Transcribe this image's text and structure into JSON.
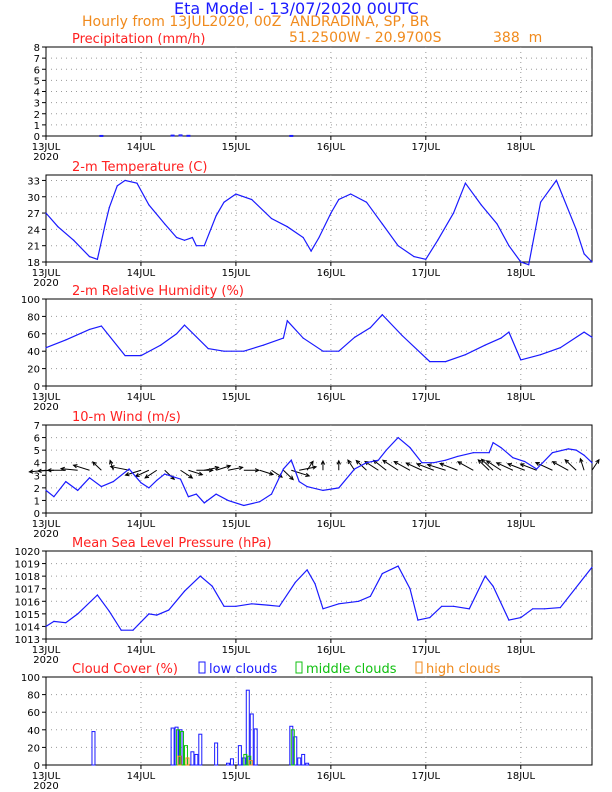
{
  "header": {
    "title": "Eta Model - 13/07/2020 00UTC",
    "subtitle": "Hourly from 13JUL2020, 00Z  ANDRADINA, SP, BR",
    "coords": "51.2500W - 20.9700S",
    "elevation": "388  m"
  },
  "colors": {
    "title": "#1a1aff",
    "subtitle": "#f08a1c",
    "panel_title": "#ff2020",
    "line": "#1a1aff",
    "wind_arrows": "#000000",
    "low_clouds": "#1a1aff",
    "middle_clouds": "#10c010",
    "high_clouds": "#f08a1c"
  },
  "time_axis": {
    "hours": 138,
    "tick_labels": [
      "13JUL",
      "14JUL",
      "15JUL",
      "16JUL",
      "17JUL",
      "18JUL"
    ],
    "year_label": "2020"
  },
  "chart_data": [
    {
      "type": "bar",
      "title": "Precipitation (mm/h)",
      "ylim": [
        0,
        8
      ],
      "yticks": [
        "0",
        "1",
        "2",
        "3",
        "4",
        "5",
        "6",
        "7",
        "8"
      ],
      "x_hours": [
        14,
        32,
        34,
        36,
        62
      ],
      "values": [
        0.05,
        0.08,
        0.1,
        0.06,
        0.05
      ]
    },
    {
      "type": "line",
      "title": "2-m Temperature (C)",
      "ylim": [
        18,
        34
      ],
      "yticks": [
        "18",
        "21",
        "24",
        "27",
        "30",
        "33"
      ],
      "x_hours": [
        0,
        3,
        7,
        11,
        13,
        15,
        16,
        18,
        20,
        23,
        26,
        30,
        33,
        35,
        37,
        38,
        40,
        43,
        45,
        48,
        52,
        57,
        61,
        65,
        67,
        69,
        72,
        74,
        77,
        81,
        85,
        89,
        93,
        96,
        99,
        103,
        106,
        110,
        114,
        117,
        120,
        122,
        125,
        129,
        134,
        136,
        138
      ],
      "values": [
        27,
        24.5,
        22,
        19,
        18.5,
        25,
        28,
        32,
        33,
        32.5,
        28.5,
        25,
        22.5,
        22,
        22.5,
        21,
        21,
        26.5,
        29,
        30.5,
        29.5,
        26,
        24.5,
        22.5,
        20,
        22.5,
        27,
        29.5,
        30.5,
        29,
        25,
        21,
        19,
        18.5,
        22,
        27,
        32.5,
        28.5,
        25,
        21,
        18,
        17.5,
        29,
        33,
        24,
        19.5,
        18
      ]
    },
    {
      "type": "line",
      "title": "2-m Relative Humidity (%)",
      "ylim": [
        0,
        100
      ],
      "yticks": [
        "0",
        "20",
        "40",
        "60",
        "80",
        "100"
      ],
      "x_hours": [
        0,
        5,
        11,
        14,
        20,
        24,
        29,
        33,
        35,
        41,
        45,
        50,
        55,
        60,
        61,
        65,
        70,
        74,
        78,
        82,
        85,
        90,
        97,
        101,
        106,
        111,
        115,
        117,
        120,
        125,
        130,
        136,
        138
      ],
      "values": [
        44,
        53,
        65,
        69,
        35,
        35,
        47,
        60,
        70,
        43,
        40,
        40,
        47,
        55,
        75,
        55,
        40,
        40,
        56,
        67,
        82,
        58,
        28,
        28,
        36,
        47,
        55,
        62,
        30,
        36,
        44,
        62,
        56
      ]
    },
    {
      "type": "line",
      "title": "10-m Wind (m/s)",
      "ylim": [
        0,
        7
      ],
      "yticks": [
        "0",
        "1",
        "2",
        "3",
        "4",
        "5",
        "6",
        "7"
      ],
      "x_hours": [
        0,
        2,
        5,
        8,
        11,
        14,
        17,
        21,
        24,
        26,
        28,
        30,
        34,
        36,
        38,
        40,
        43,
        46,
        50,
        54,
        57,
        60,
        62,
        64,
        66,
        70,
        74,
        78,
        81,
        84,
        86,
        89,
        92,
        95,
        98,
        101,
        104,
        108,
        112,
        113,
        115,
        118,
        121,
        124,
        128,
        132,
        134,
        136,
        138
      ],
      "values": [
        1.8,
        1.3,
        2.5,
        1.8,
        2.8,
        2.1,
        2.5,
        3.5,
        2.4,
        2.0,
        2.6,
        3.1,
        2.7,
        1.3,
        1.5,
        0.8,
        1.5,
        1.0,
        0.6,
        0.9,
        1.5,
        3.5,
        4.2,
        2.5,
        2.1,
        1.8,
        2.0,
        3.5,
        4.0,
        4.2,
        5.0,
        6.0,
        5.2,
        4.0,
        4.0,
        4.2,
        4.5,
        4.8,
        4.8,
        5.6,
        5.2,
        4.4,
        4.1,
        3.5,
        4.8,
        5.1,
        5.0,
        4.6,
        4.0
      ],
      "wind_direction_deg": [
        80,
        85,
        90,
        100,
        120,
        150,
        170,
        110,
        60,
        50,
        40,
        330,
        320,
        300,
        270,
        250,
        240,
        250,
        270,
        300,
        320,
        330,
        300,
        250,
        200,
        180,
        180,
        160,
        150,
        140,
        145,
        140,
        135,
        130,
        125,
        120,
        125,
        135,
        150,
        150,
        140,
        130,
        125,
        125,
        130,
        135,
        150,
        170,
        200
      ]
    },
    {
      "type": "line",
      "title": "Mean Sea Level Pressure (hPa)",
      "ylim": [
        1013,
        1020
      ],
      "yticks": [
        "1013",
        "1014",
        "1015",
        "1016",
        "1017",
        "1018",
        "1019",
        "1020"
      ],
      "x_hours": [
        0,
        2,
        5,
        8,
        13,
        16,
        19,
        22,
        26,
        28,
        31,
        35,
        39,
        42,
        45,
        48,
        52,
        56,
        59,
        63,
        66,
        68,
        70,
        74,
        79,
        82,
        85,
        89,
        92,
        94,
        97,
        100,
        103,
        107,
        111,
        113,
        117,
        120,
        123,
        126,
        130,
        135,
        138
      ],
      "values": [
        1014.0,
        1014.4,
        1014.3,
        1015.0,
        1016.5,
        1015.2,
        1013.7,
        1013.7,
        1015.0,
        1014.9,
        1015.3,
        1016.8,
        1018.0,
        1017.2,
        1015.6,
        1015.6,
        1015.8,
        1015.7,
        1015.6,
        1017.5,
        1018.5,
        1017.4,
        1015.4,
        1015.8,
        1016.0,
        1016.4,
        1018.2,
        1018.8,
        1017.0,
        1014.5,
        1014.7,
        1015.6,
        1015.6,
        1015.4,
        1018.0,
        1017.2,
        1014.5,
        1014.7,
        1015.4,
        1015.4,
        1015.5,
        1017.5,
        1018.7
      ]
    },
    {
      "type": "bar",
      "title": "Cloud Cover (%)",
      "ylim": [
        0,
        100
      ],
      "yticks": [
        "0",
        "20",
        "40",
        "60",
        "80",
        "100"
      ],
      "legend": [
        "low clouds",
        "middle clouds",
        "high clouds"
      ],
      "series": [
        {
          "name": "low clouds",
          "x_hours": [
            12,
            32,
            33,
            34,
            37,
            38,
            39,
            43,
            46,
            47,
            49,
            50,
            51,
            52,
            53,
            62,
            63,
            64,
            65,
            66
          ],
          "values": [
            38,
            42,
            43,
            40,
            15,
            12,
            35,
            25,
            2,
            7,
            22,
            8,
            85,
            58,
            41,
            44,
            32,
            8,
            12,
            2
          ]
        },
        {
          "name": "middle clouds",
          "x_hours": [
            33,
            34,
            35,
            50,
            51,
            62
          ],
          "values": [
            40,
            38,
            22,
            12,
            10,
            40
          ]
        },
        {
          "name": "high clouds",
          "x_hours": [
            33,
            35,
            51
          ],
          "values": [
            10,
            8,
            5
          ]
        }
      ]
    }
  ]
}
